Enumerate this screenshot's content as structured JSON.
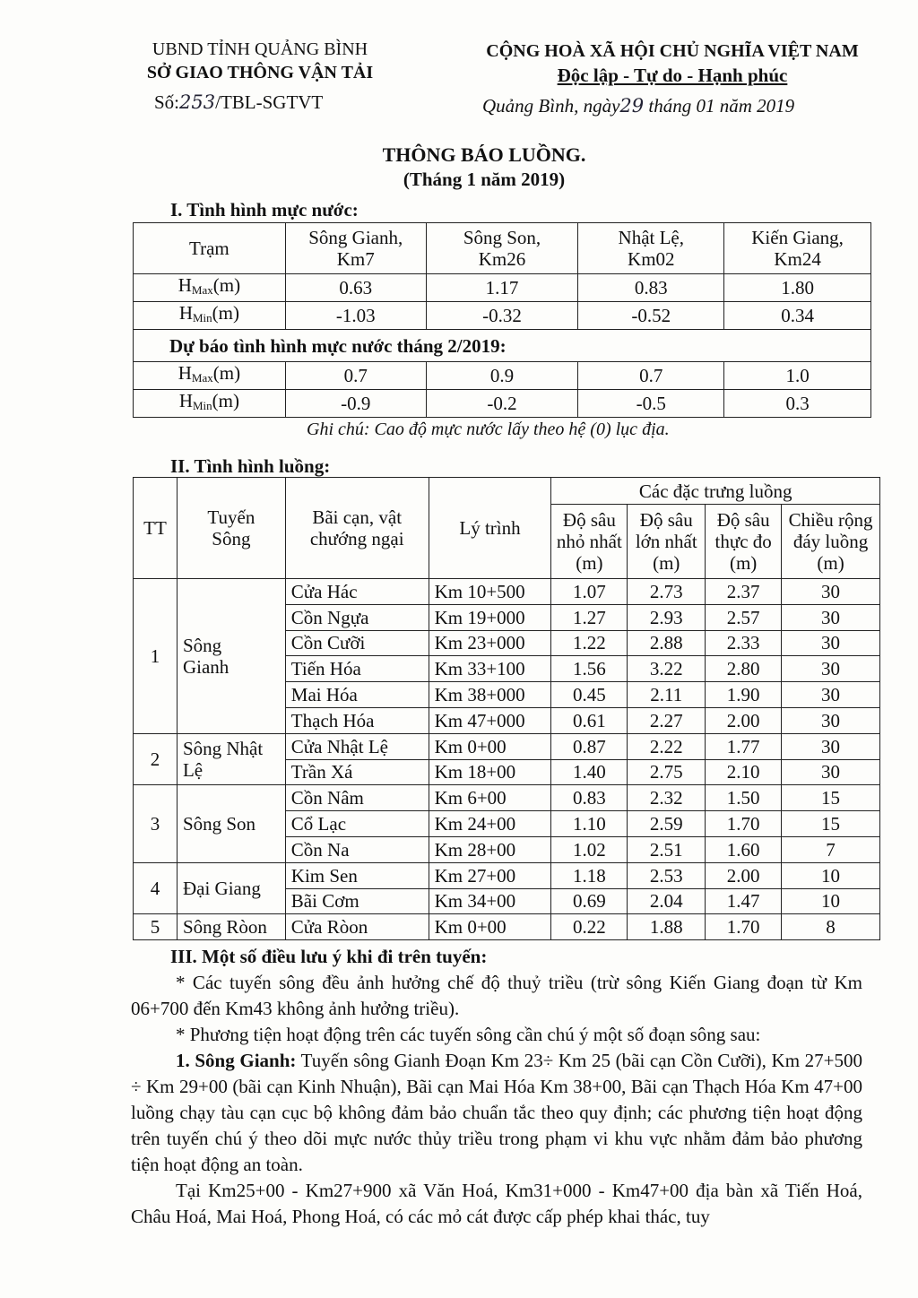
{
  "header": {
    "left_line1": "UBND TỈNH QUẢNG BÌNH",
    "left_line2": "SỞ GIAO THÔNG VẬN TẢI",
    "number_prefix": "Số:",
    "number_handwritten": "253",
    "number_suffix": "/TBL-SGTVT",
    "right_line1": "CỘNG HOÀ XÃ HỘI CHỦ NGHĨA VIỆT NAM",
    "right_line2": "Độc lập - Tự do - Hạnh phúc",
    "date_prefix": "Quảng Bình, ngày",
    "date_day_handwritten": "29",
    "date_suffix": "tháng 01  năm 2019"
  },
  "title": "THÔNG BÁO LUỒNG.",
  "subtitle": "(Tháng 1 năm 2019)",
  "section1": {
    "heading": "I. Tình hình mực nước:",
    "station_header": "Trạm",
    "stations": [
      [
        "Sông Gianh,",
        "Km7"
      ],
      [
        "Sông Son,",
        "Km26"
      ],
      [
        "Nhật Lệ,",
        "Km02"
      ],
      [
        "Kiến Giang,",
        "Km24"
      ]
    ],
    "hmax_label": "H",
    "hmax_sub": "Max",
    "hmin_label": "H",
    "hmin_sub": "Min",
    "unit": "(m)",
    "hmax": [
      "0.63",
      "1.17",
      "0.83",
      "1.80"
    ],
    "hmin": [
      "-1.03",
      "-0.32",
      "-0.52",
      "0.34"
    ],
    "forecast_heading": "Dự báo tình hình mực nước tháng 2/2019:",
    "forecast_hmax": [
      "0.7",
      "0.9",
      "0.7",
      "1.0"
    ],
    "forecast_hmin": [
      "-0.9",
      "-0.2",
      "-0.5",
      "0.3"
    ],
    "note": "Ghi chú: Cao độ mực nước lấy theo hệ (0) lục địa."
  },
  "section2": {
    "heading": "II. Tình hình luồng:",
    "headers": {
      "tt": "TT",
      "route": [
        "Tuyến",
        "Sông"
      ],
      "shoal": [
        "Bãi cạn, vật",
        "chướng ngại"
      ],
      "km": "Lý trình",
      "group": "Các đặc trưng luồng",
      "min_depth": [
        "Độ sâu",
        "nhỏ nhất",
        "(m)"
      ],
      "max_depth": [
        "Độ sâu",
        "lớn nhất",
        "(m)"
      ],
      "actual_depth": [
        "Độ sâu",
        "thực đo",
        "(m)"
      ],
      "width": [
        "Chiều rộng",
        "đáy luồng",
        "(m)"
      ]
    },
    "groups": [
      {
        "tt": "1",
        "route": [
          "Sông",
          "Gianh"
        ],
        "rows": [
          [
            "Cửa Hác",
            "Km 10+500",
            "1.07",
            "2.73",
            "2.37",
            "30"
          ],
          [
            "Cồn Ngựa",
            "Km 19+000",
            "1.27",
            "2.93",
            "2.57",
            "30"
          ],
          [
            "Cồn Cưỡi",
            "Km 23+000",
            "1.22",
            "2.88",
            "2.33",
            "30"
          ],
          [
            "Tiến Hóa",
            "Km 33+100",
            "1.56",
            "3.22",
            "2.80",
            "30"
          ],
          [
            "Mai Hóa",
            "Km 38+000",
            "0.45",
            "2.11",
            "1.90",
            "30"
          ],
          [
            "Thạch Hóa",
            "Km 47+000",
            "0.61",
            "2.27",
            "2.00",
            "30"
          ]
        ]
      },
      {
        "tt": "2",
        "route": [
          "Sông   Nhật",
          "Lệ"
        ],
        "rows": [
          [
            "Cửa Nhật Lệ",
            "Km 0+00",
            "0.87",
            "2.22",
            "1.77",
            "30"
          ],
          [
            "Trần Xá",
            "Km 18+00",
            "1.40",
            "2.75",
            "2.10",
            "30"
          ]
        ]
      },
      {
        "tt": "3",
        "route": [
          "Sông Son"
        ],
        "rows": [
          [
            "Cồn Nâm",
            "Km 6+00",
            "0.83",
            "2.32",
            "1.50",
            "15"
          ],
          [
            "Cổ Lạc",
            "Km 24+00",
            "1.10",
            "2.59",
            "1.70",
            "15"
          ],
          [
            "Cồn Na",
            "Km 28+00",
            "1.02",
            "2.51",
            "1.60",
            "7"
          ]
        ]
      },
      {
        "tt": "4",
        "route": [
          "Đại Giang"
        ],
        "rows": [
          [
            "Kim Sen",
            "Km 27+00",
            "1.18",
            "2.53",
            "2.00",
            "10"
          ],
          [
            "Bãi Cơm",
            "Km 34+00",
            "0.69",
            "2.04",
            "1.47",
            "10"
          ]
        ]
      },
      {
        "tt": "5",
        "route": [
          "Sông Ròon"
        ],
        "rows": [
          [
            "Cửa Ròon",
            "Km 0+00",
            "0.22",
            "1.88",
            "1.70",
            "8"
          ]
        ]
      }
    ]
  },
  "section3": {
    "heading": "III. Một số điều lưu ý khi đi trên tuyến:",
    "p1": "* Các tuyến sông đều ảnh hưởng chế độ thuỷ triều (trừ sông Kiến Giang đoạn từ Km 06+700 đến Km43 không ảnh hưởng triều).",
    "p2": "* Phương tiện hoạt động trên các tuyến sông cần chú ý một số đoạn sông sau:",
    "p3_bold": "1. Sông Gianh:",
    "p3": " Tuyến sông Gianh Đoạn Km 23÷ Km 25 (bãi cạn Cồn Cưỡi), Km 27+500 ÷ Km 29+00 (bãi cạn Kinh Nhuận), Bãi cạn Mai Hóa Km 38+00, Bãi cạn Thạch Hóa Km 47+00 luồng chạy tàu cạn cục bộ không đảm bảo chuẩn tắc theo quy định; các phương tiện hoạt động trên tuyến chú ý theo dõi mực nước thủy triều trong phạm vi khu vực nhằm đảm bảo phương tiện hoạt động an toàn.",
    "p4": "Tại Km25+00 - Km27+900 xã Văn Hoá, Km31+000 - Km47+00 địa bàn xã Tiến Hoá, Châu Hoá, Mai Hoá, Phong Hoá, có các mỏ cát được cấp phép khai thác, tuy"
  }
}
